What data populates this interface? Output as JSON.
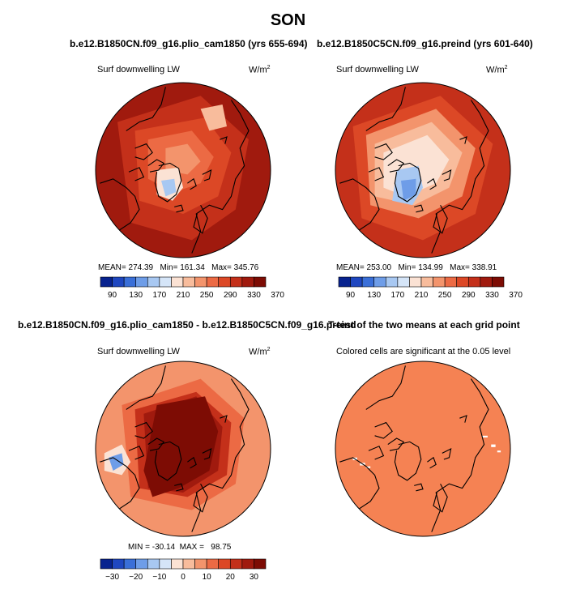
{
  "figure_title": "SON",
  "colors": {
    "dark_red": "#8b0d00",
    "coastline": "#000000"
  },
  "chart_data": [
    {
      "type": "heatmap",
      "title": "b.e12.B1850CN.f09_g16.plio_cam1850 (yrs 655-694)",
      "variable_label": "Surf downwelling LW",
      "units": "W/m",
      "units_exp": "2",
      "stats": {
        "mean_label": "MEAN=",
        "mean": "274.39",
        "min_label": "Min=",
        "min": "161.34",
        "max_label": "Max=",
        "max": "345.76"
      },
      "colorbar_ticks": [
        "90",
        "130",
        "170",
        "210",
        "250",
        "290",
        "330",
        "370"
      ],
      "colorbar_colors": [
        "#08238f",
        "#1f47c0",
        "#3a6fd8",
        "#6e9de8",
        "#a8c8f2",
        "#d5e5f8",
        "#fbe2d4",
        "#f8bc9c",
        "#f3946c",
        "#ec6a44",
        "#dc4826",
        "#c4301a",
        "#a01a0e",
        "#7d0c04"
      ],
      "colorbar_range": [
        90,
        370
      ],
      "field_range": [
        161.34,
        345.76
      ]
    },
    {
      "type": "heatmap",
      "title": "b.e12.B1850C5CN.f09_g16.preind (yrs 601-640)",
      "variable_label": "Surf downwelling LW",
      "units": "W/m",
      "units_exp": "2",
      "stats": {
        "mean_label": "MEAN=",
        "mean": "253.00",
        "min_label": "Min=",
        "min": "134.99",
        "max_label": "Max=",
        "max": "338.91"
      },
      "colorbar_ticks": [
        "90",
        "130",
        "170",
        "210",
        "250",
        "290",
        "330",
        "370"
      ],
      "colorbar_colors": [
        "#08238f",
        "#1f47c0",
        "#3a6fd8",
        "#6e9de8",
        "#a8c8f2",
        "#d5e5f8",
        "#fbe2d4",
        "#f8bc9c",
        "#f3946c",
        "#ec6a44",
        "#dc4826",
        "#c4301a",
        "#a01a0e",
        "#7d0c04"
      ],
      "colorbar_range": [
        90,
        370
      ],
      "field_range": [
        134.99,
        338.91
      ]
    },
    {
      "type": "heatmap",
      "title": "b.e12.B1850CN.f09_g16.plio_cam1850 - b.e12.B1850C5CN.f09_g16.preind",
      "variable_label": "Surf downwelling LW",
      "units": "W/m",
      "units_exp": "2",
      "stats": {
        "min_label": "MIN =",
        "min": "-30.14",
        "max_label": "MAX =",
        "max": "98.75"
      },
      "colorbar_ticks": [
        "−30",
        "−20",
        "−10",
        "0",
        "10",
        "20",
        "30"
      ],
      "colorbar_colors": [
        "#08238f",
        "#1f47c0",
        "#3a6fd8",
        "#6e9de8",
        "#a8c8f2",
        "#d5e5f8",
        "#fbe2d4",
        "#f8bc9c",
        "#f3946c",
        "#ec6a44",
        "#dc4826",
        "#c4301a",
        "#a01a0e",
        "#7d0c04"
      ],
      "colorbar_range": [
        -35,
        35
      ],
      "field_range": [
        -30.14,
        98.75
      ]
    },
    {
      "type": "heatmap",
      "title": "T-test of the two means at each grid point",
      "subtitle": "Colored cells are significant at the 0.05 level",
      "fill_color": "#f58253"
    }
  ]
}
